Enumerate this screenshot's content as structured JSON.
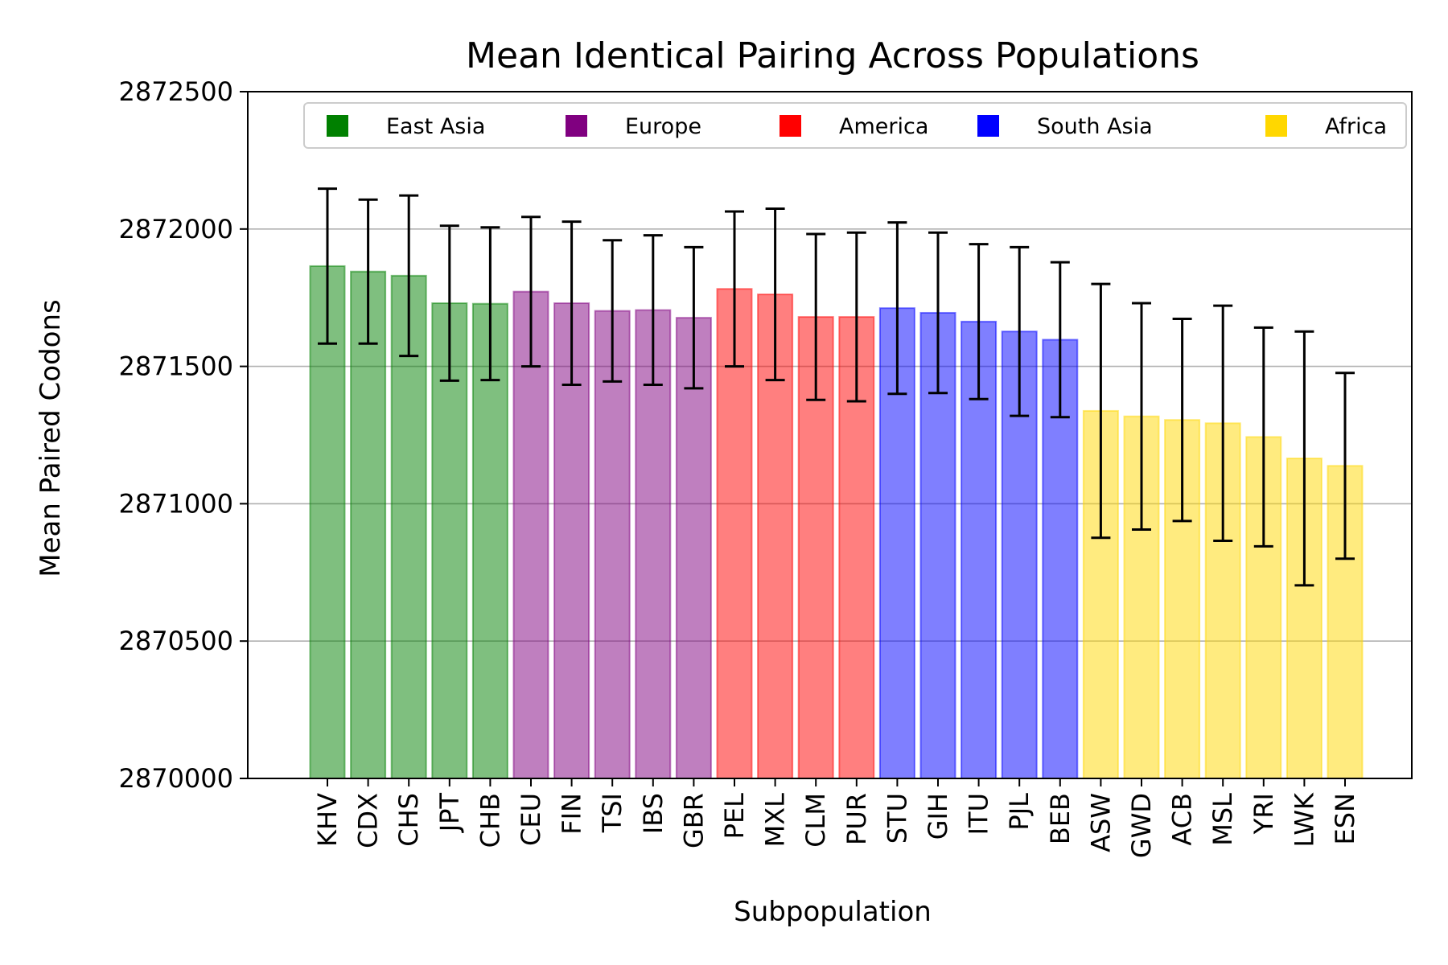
{
  "chart_data": {
    "type": "bar",
    "title": "Mean Identical Pairing Across Populations",
    "xlabel": "Subpopulation",
    "ylabel": "Mean Paired Codons",
    "ylim": [
      2870000,
      2872500
    ],
    "yticks": [
      2870000,
      2870500,
      2871000,
      2871500,
      2872000,
      2872500
    ],
    "grid": "horizontal",
    "legend_position": "top",
    "legend": [
      {
        "name": "East Asia",
        "color": "#008000"
      },
      {
        "name": "Europe",
        "color": "#800080"
      },
      {
        "name": "America",
        "color": "#ff0000"
      },
      {
        "name": "South Asia",
        "color": "#0000ff"
      },
      {
        "name": "Africa",
        "color": "#ffd700"
      }
    ],
    "categories": [
      "KHV",
      "CDX",
      "CHS",
      "JPT",
      "CHB",
      "CEU",
      "FIN",
      "TSI",
      "IBS",
      "GBR",
      "PEL",
      "MXL",
      "CLM",
      "PUR",
      "STU",
      "GIH",
      "ITU",
      "PJL",
      "BEB",
      "ASW",
      "GWD",
      "ACB",
      "MSL",
      "YRI",
      "LWK",
      "ESN"
    ],
    "values": [
      2871865,
      2871845,
      2871830,
      2871730,
      2871728,
      2871772,
      2871730,
      2871702,
      2871705,
      2871677,
      2871782,
      2871762,
      2871680,
      2871680,
      2871712,
      2871695,
      2871663,
      2871627,
      2871597,
      2871338,
      2871318,
      2871305,
      2871293,
      2871243,
      2871165,
      2871138
    ],
    "error": [
      282,
      262,
      292,
      282,
      278,
      272,
      297,
      257,
      272,
      257,
      282,
      312,
      302,
      307,
      312,
      292,
      282,
      307,
      282,
      462,
      412,
      368,
      428,
      398,
      462,
      338
    ],
    "groups": [
      "East Asia",
      "East Asia",
      "East Asia",
      "East Asia",
      "East Asia",
      "Europe",
      "Europe",
      "Europe",
      "Europe",
      "Europe",
      "America",
      "America",
      "America",
      "America",
      "South Asia",
      "South Asia",
      "South Asia",
      "South Asia",
      "South Asia",
      "Africa",
      "Africa",
      "Africa",
      "Africa",
      "Africa",
      "Africa",
      "Africa"
    ]
  }
}
